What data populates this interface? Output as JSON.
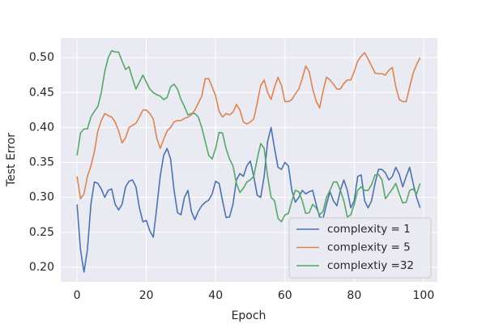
{
  "chart_data": {
    "type": "line",
    "x_label": "Epoch",
    "y_label": "Test Error",
    "x": [
      0,
      1,
      2,
      3,
      4,
      5,
      6,
      7,
      8,
      9,
      10,
      11,
      12,
      13,
      14,
      15,
      16,
      17,
      18,
      19,
      20,
      21,
      22,
      23,
      24,
      25,
      26,
      27,
      28,
      29,
      30,
      31,
      32,
      33,
      34,
      35,
      36,
      37,
      38,
      39,
      40,
      41,
      42,
      43,
      44,
      45,
      46,
      47,
      48,
      49,
      50,
      51,
      52,
      53,
      54,
      55,
      56,
      57,
      58,
      59,
      60,
      61,
      62,
      63,
      64,
      65,
      66,
      67,
      68,
      69,
      70,
      71,
      72,
      73,
      74,
      75,
      76,
      77,
      78,
      79,
      80,
      81,
      82,
      83,
      84,
      85,
      86,
      87,
      88,
      89,
      90,
      91,
      92,
      93,
      94,
      95,
      96,
      97,
      98,
      99
    ],
    "series": [
      {
        "name": "complexity = 1",
        "color": "#4c72b0",
        "values": [
          0.29,
          0.225,
          0.193,
          0.225,
          0.29,
          0.322,
          0.32,
          0.312,
          0.3,
          0.31,
          0.312,
          0.29,
          0.282,
          0.29,
          0.315,
          0.323,
          0.325,
          0.315,
          0.285,
          0.265,
          0.267,
          0.252,
          0.243,
          0.285,
          0.33,
          0.36,
          0.37,
          0.355,
          0.31,
          0.278,
          0.275,
          0.3,
          0.31,
          0.28,
          0.268,
          0.28,
          0.288,
          0.293,
          0.296,
          0.305,
          0.323,
          0.32,
          0.295,
          0.271,
          0.272,
          0.29,
          0.325,
          0.334,
          0.33,
          0.345,
          0.352,
          0.33,
          0.303,
          0.3,
          0.33,
          0.38,
          0.4,
          0.37,
          0.343,
          0.34,
          0.35,
          0.345,
          0.31,
          0.293,
          0.3,
          0.31,
          0.305,
          0.308,
          0.31,
          0.29,
          0.272,
          0.27,
          0.29,
          0.308,
          0.295,
          0.288,
          0.31,
          0.325,
          0.31,
          0.285,
          0.295,
          0.33,
          0.332,
          0.295,
          0.285,
          0.295,
          0.32,
          0.34,
          0.34,
          0.335,
          0.325,
          0.33,
          0.343,
          0.333,
          0.315,
          0.33,
          0.343,
          0.32,
          0.3,
          0.285
        ]
      },
      {
        "name": "complexity = 5",
        "color": "#dd8452",
        "values": [
          0.33,
          0.298,
          0.305,
          0.33,
          0.345,
          0.365,
          0.395,
          0.41,
          0.42,
          0.417,
          0.415,
          0.408,
          0.395,
          0.378,
          0.385,
          0.4,
          0.403,
          0.406,
          0.415,
          0.425,
          0.425,
          0.42,
          0.412,
          0.385,
          0.37,
          0.383,
          0.395,
          0.4,
          0.408,
          0.41,
          0.41,
          0.413,
          0.415,
          0.418,
          0.425,
          0.435,
          0.445,
          0.47,
          0.47,
          0.458,
          0.445,
          0.423,
          0.415,
          0.42,
          0.418,
          0.422,
          0.433,
          0.425,
          0.408,
          0.405,
          0.408,
          0.412,
          0.435,
          0.46,
          0.468,
          0.45,
          0.44,
          0.458,
          0.472,
          0.46,
          0.437,
          0.437,
          0.44,
          0.448,
          0.455,
          0.47,
          0.488,
          0.48,
          0.455,
          0.438,
          0.428,
          0.452,
          0.472,
          0.468,
          0.462,
          0.455,
          0.455,
          0.463,
          0.468,
          0.468,
          0.48,
          0.495,
          0.502,
          0.507,
          0.498,
          0.488,
          0.478,
          0.477,
          0.477,
          0.475,
          0.482,
          0.486,
          0.458,
          0.44,
          0.437,
          0.437,
          0.458,
          0.478,
          0.49,
          0.5
        ]
      },
      {
        "name": "complextiy =32",
        "color": "#55a868",
        "values": [
          0.36,
          0.392,
          0.398,
          0.398,
          0.415,
          0.423,
          0.43,
          0.45,
          0.48,
          0.5,
          0.51,
          0.508,
          0.508,
          0.495,
          0.483,
          0.487,
          0.47,
          0.455,
          0.465,
          0.475,
          0.465,
          0.455,
          0.45,
          0.447,
          0.445,
          0.44,
          0.443,
          0.458,
          0.462,
          0.455,
          0.44,
          0.43,
          0.418,
          0.42,
          0.42,
          0.415,
          0.4,
          0.38,
          0.36,
          0.355,
          0.37,
          0.393,
          0.392,
          0.37,
          0.355,
          0.345,
          0.32,
          0.307,
          0.313,
          0.322,
          0.325,
          0.33,
          0.355,
          0.377,
          0.37,
          0.33,
          0.3,
          0.295,
          0.27,
          0.265,
          0.275,
          0.277,
          0.295,
          0.31,
          0.308,
          0.295,
          0.277,
          0.278,
          0.29,
          0.285,
          0.275,
          0.28,
          0.3,
          0.31,
          0.322,
          0.322,
          0.31,
          0.295,
          0.272,
          0.275,
          0.29,
          0.31,
          0.315,
          0.31,
          0.31,
          0.318,
          0.332,
          0.333,
          0.325,
          0.298,
          0.305,
          0.312,
          0.32,
          0.305,
          0.292,
          0.293,
          0.31,
          0.312,
          0.305,
          0.32
        ]
      }
    ],
    "xlim": [
      -4.7,
      104
    ],
    "ylim": [
      0.179,
      0.528
    ],
    "xticks": [
      0,
      20,
      40,
      60,
      80,
      100
    ],
    "yticks": [
      {
        "value": 0.2,
        "label": "0.20"
      },
      {
        "value": 0.25,
        "label": "0.25"
      },
      {
        "value": 0.3,
        "label": "0.30"
      },
      {
        "value": 0.35,
        "label": "0.35"
      },
      {
        "value": 0.4,
        "label": "0.40"
      },
      {
        "value": 0.45,
        "label": "0.45"
      },
      {
        "value": 0.5,
        "label": "0.50"
      }
    ],
    "grid": true,
    "legend": "lower right"
  }
}
